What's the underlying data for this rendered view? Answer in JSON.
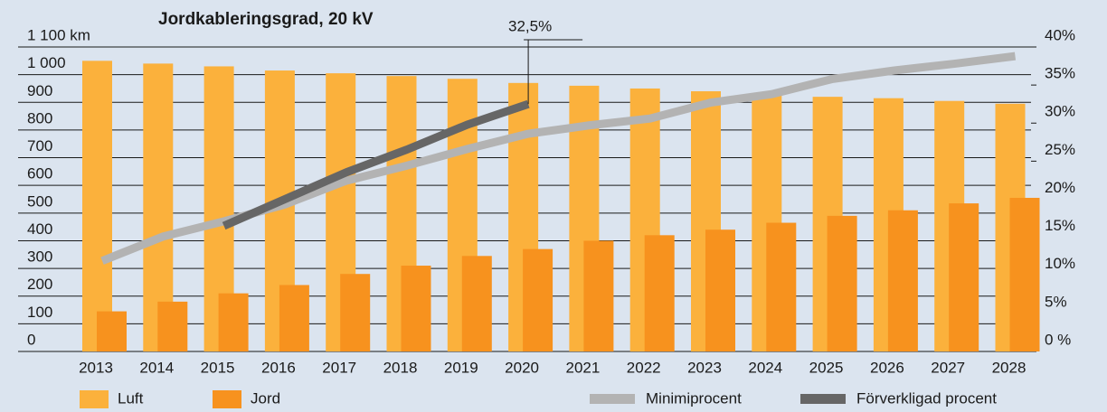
{
  "chart_data": {
    "type": "bar",
    "title": "Jordkableringsgrad, 20 kV",
    "categories": [
      "2013",
      "2014",
      "2015",
      "2016",
      "2017",
      "2018",
      "2019",
      "2020",
      "2021",
      "2022",
      "2023",
      "2024",
      "2025",
      "2026",
      "2027",
      "2028"
    ],
    "series": [
      {
        "name": "Luft",
        "color": "#fbb13c",
        "values": [
          1050,
          1040,
          1030,
          1015,
          1005,
          995,
          985,
          970,
          960,
          950,
          940,
          930,
          920,
          915,
          905,
          895
        ]
      },
      {
        "name": "Jord",
        "color": "#f7921e",
        "values": [
          145,
          180,
          210,
          240,
          280,
          310,
          345,
          370,
          400,
          420,
          440,
          465,
          490,
          510,
          535,
          555
        ]
      },
      {
        "name": "Minimiprocent",
        "color": "#b3b3b3",
        "axis": "y2",
        "values": [
          11.9,
          15.1,
          17.1,
          19.3,
          22.4,
          24.4,
          26.6,
          28.6,
          29.7,
          30.6,
          32.7,
          33.8,
          35.8,
          36.9,
          37.8,
          38.8
        ]
      },
      {
        "name": "Förverkligad procent",
        "color": "#666666",
        "axis": "y2",
        "values": [
          null,
          null,
          16.5,
          20,
          23.5,
          26.5,
          29.8,
          32.5,
          null,
          null,
          null,
          null,
          null,
          null,
          null,
          null
        ]
      }
    ],
    "annotation": "32,5%",
    "ylim": [
      0,
      1100
    ],
    "yticks": [
      0,
      100,
      200,
      300,
      400,
      500,
      600,
      700,
      800,
      900,
      {
        "value": 1000,
        "label": "1 000"
      },
      {
        "value": 1100,
        "label": "1 100 km"
      }
    ],
    "y2lim": [
      0,
      40
    ],
    "y2ticks": [
      {
        "value": 0,
        "label": "0 %"
      },
      {
        "value": 5,
        "label": "5%"
      },
      {
        "value": 10,
        "label": "10%"
      },
      {
        "value": 15,
        "label": "15%"
      },
      {
        "value": 20,
        "label": "20%"
      },
      {
        "value": 25,
        "label": "25%"
      },
      {
        "value": 30,
        "label": "30%"
      },
      {
        "value": 35,
        "label": "35%"
      },
      {
        "value": 40,
        "label": "40%"
      }
    ],
    "grid": true
  }
}
